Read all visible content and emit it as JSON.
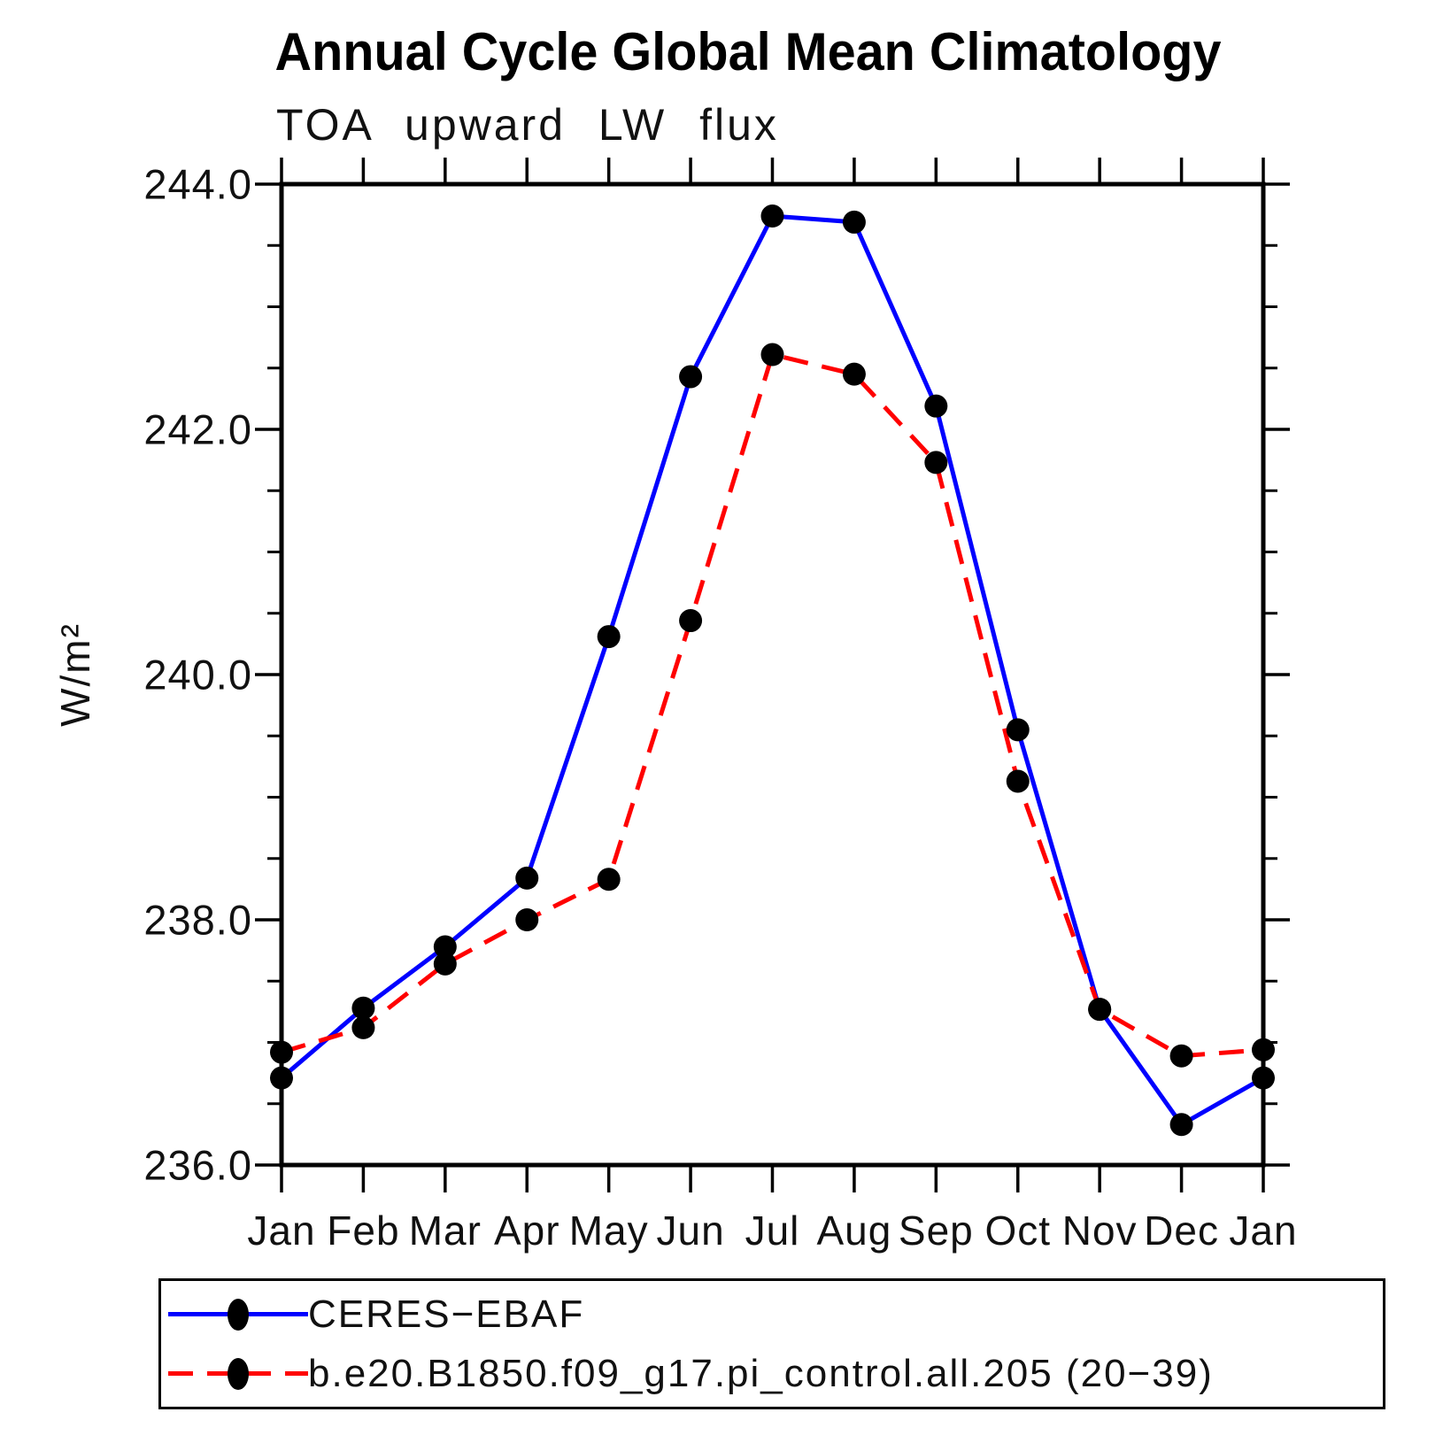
{
  "chart_data": {
    "type": "line",
    "title": "Annual Cycle Global Mean Climatology",
    "subtitle": "TOA upward LW flux",
    "ylabel": "W/m²",
    "xlabel": "",
    "categories": [
      "Jan",
      "Feb",
      "Mar",
      "Apr",
      "May",
      "Jun",
      "Jul",
      "Aug",
      "Sep",
      "Oct",
      "Nov",
      "Dec",
      "Jan"
    ],
    "series": [
      {
        "name": "CERES−EBAF",
        "color": "#0000ff",
        "line_style": "solid",
        "marker": "filled-circle",
        "marker_color": "#000000",
        "values": [
          236.71,
          237.28,
          237.78,
          238.34,
          240.31,
          242.43,
          243.74,
          243.69,
          242.19,
          239.55,
          237.27,
          236.33,
          236.71
        ]
      },
      {
        "name": "b.e20.B1850.f09_g17.pi_control.all.205 (20−39)",
        "color": "#ff0000",
        "line_style": "dashed",
        "marker": "filled-circle",
        "marker_color": "#000000",
        "values": [
          236.92,
          237.12,
          237.64,
          238.0,
          238.33,
          240.44,
          242.61,
          242.45,
          241.73,
          239.13,
          237.27,
          236.89,
          236.94
        ]
      }
    ],
    "ylim": [
      236.0,
      244.0
    ],
    "y_major_step": 2.0,
    "y_minor_step": 0.5,
    "y_ticklabels": [
      "236.0",
      "238.0",
      "240.0",
      "242.0",
      "244.0"
    ],
    "grid": false,
    "legend_position": "bottom",
    "axis_color": "#000000"
  }
}
